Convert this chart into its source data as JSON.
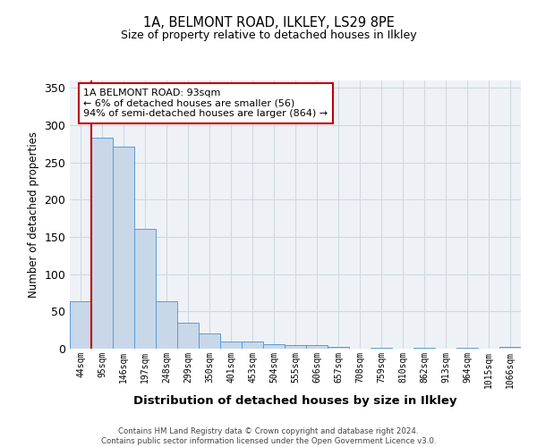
{
  "title1": "1A, BELMONT ROAD, ILKLEY, LS29 8PE",
  "title2": "Size of property relative to detached houses in Ilkley",
  "xlabel": "Distribution of detached houses by size in Ilkley",
  "ylabel": "Number of detached properties",
  "footnote1": "Contains HM Land Registry data © Crown copyright and database right 2024.",
  "footnote2": "Contains public sector information licensed under the Open Government Licence v3.0.",
  "annotation_line1": "1A BELMONT ROAD: 93sqm",
  "annotation_line2": "← 6% of detached houses are smaller (56)",
  "annotation_line3": "94% of semi-detached houses are larger (864) →",
  "bar_labels": [
    "44sqm",
    "95sqm",
    "146sqm",
    "197sqm",
    "248sqm",
    "299sqm",
    "350sqm",
    "401sqm",
    "453sqm",
    "504sqm",
    "555sqm",
    "606sqm",
    "657sqm",
    "708sqm",
    "759sqm",
    "810sqm",
    "862sqm",
    "913sqm",
    "964sqm",
    "1015sqm",
    "1066sqm"
  ],
  "bar_values": [
    64,
    283,
    271,
    161,
    64,
    35,
    21,
    10,
    10,
    6,
    5,
    5,
    2,
    0,
    1,
    0,
    1,
    0,
    1,
    0,
    2
  ],
  "bar_color": "#c8d8e8",
  "bar_edge_color": "#5b9bd5",
  "vertical_line_color": "#c00000",
  "annotation_box_edge_color": "#c00000",
  "ylim": [
    0,
    360
  ],
  "yticks": [
    0,
    50,
    100,
    150,
    200,
    250,
    300,
    350
  ],
  "grid_color": "#d0d8e0",
  "bg_color": "#eef2f7"
}
